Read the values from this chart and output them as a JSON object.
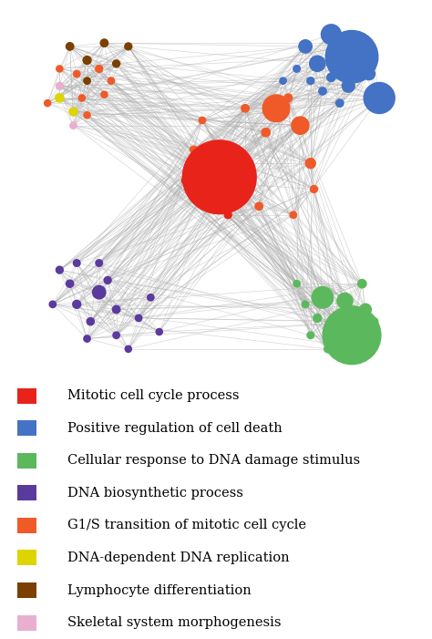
{
  "legend_items": [
    {
      "color": "#e8231a",
      "label": "Mitotic cell cycle process"
    },
    {
      "color": "#4472c4",
      "label": "Positive regulation of cell death"
    },
    {
      "color": "#5cb85c",
      "label": "Cellular response to DNA damage stimulus"
    },
    {
      "color": "#5b3a9e",
      "label": "DNA biosynthetic process"
    },
    {
      "color": "#f05a28",
      "label": "G1/S transition of mitotic cell cycle"
    },
    {
      "color": "#ddd400",
      "label": "DNA-dependent DNA replication"
    },
    {
      "color": "#7b3f00",
      "label": "Lymphocyte differentiation"
    },
    {
      "color": "#e8afd0",
      "label": "Skeletal system morphogenesis"
    }
  ],
  "background_color": "#ffffff",
  "edge_color": "#b0b0b0",
  "edge_alpha": 0.55,
  "edge_linewidth": 0.45,
  "legend_font_size": 10.5
}
